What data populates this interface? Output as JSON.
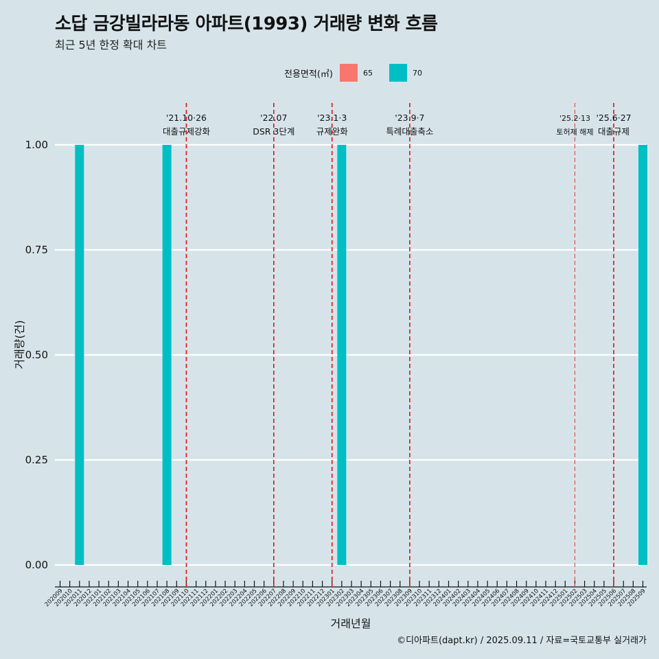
{
  "title": "소답 금강빌라라동 아파트(1993) 거래량 변화 흐름",
  "subtitle": "최근 5년 한정 확대 차트",
  "caption": "©디아파트(dapt.kr) / 2025.09.11 / 자료=국토교통부 실거래가",
  "legend": {
    "title": "전용면적(㎡)",
    "items": [
      {
        "label": "65",
        "color": "#f8766d"
      },
      {
        "label": "70",
        "color": "#00bfc4"
      }
    ]
  },
  "chart_data": {
    "type": "bar",
    "title": "소답 금강빌라라동 아파트(1993) 거래량 변화 흐름",
    "xlabel": "거래년월",
    "ylabel": "거래량(건)",
    "ylim": [
      0,
      1
    ],
    "yticks": [
      "0.00",
      "0.25",
      "0.50",
      "0.75",
      "1.00"
    ],
    "ytick_values": [
      0,
      0.25,
      0.5,
      0.75,
      1.0
    ],
    "categories": [
      "202009",
      "202010",
      "202011",
      "202012",
      "202101",
      "202102",
      "202103",
      "202104",
      "202105",
      "202106",
      "202107",
      "202108",
      "202109",
      "202110",
      "202111",
      "202112",
      "202201",
      "202202",
      "202203",
      "202204",
      "202205",
      "202206",
      "202207",
      "202208",
      "202209",
      "202210",
      "202211",
      "202212",
      "202301",
      "202302",
      "202303",
      "202304",
      "202305",
      "202306",
      "202307",
      "202308",
      "202309",
      "202310",
      "202311",
      "202312",
      "202401",
      "202402",
      "202403",
      "202404",
      "202405",
      "202406",
      "202407",
      "202408",
      "202409",
      "202410",
      "202411",
      "202412",
      "202501",
      "202502",
      "202503",
      "202504",
      "202505",
      "202506",
      "202507",
      "202508",
      "202509"
    ],
    "series": [
      {
        "name": "70",
        "color": "#00bfc4",
        "points": [
          {
            "x": "202011",
            "value": 1
          },
          {
            "x": "202108",
            "value": 1
          },
          {
            "x": "202302",
            "value": 1
          },
          {
            "x": "202509",
            "value": 1
          }
        ]
      }
    ],
    "annotations": [
      {
        "x": "202110",
        "date": "'21.10·26",
        "label": "대출규제강화",
        "style": "major"
      },
      {
        "x": "202207",
        "date": "'22.07",
        "label": "DSR 3단계",
        "style": "major"
      },
      {
        "x": "202301",
        "date": "'23.1·3",
        "label": "규제완화",
        "style": "major"
      },
      {
        "x": "202309",
        "date": "'23.9·7",
        "label": "특례대출축소",
        "style": "major"
      },
      {
        "x": "202502",
        "date": "'25.2·13",
        "label": "토허제 해제",
        "style": "minor"
      },
      {
        "x": "202506",
        "date": "'25.6·27",
        "label": "대출규제",
        "style": "major"
      }
    ]
  }
}
